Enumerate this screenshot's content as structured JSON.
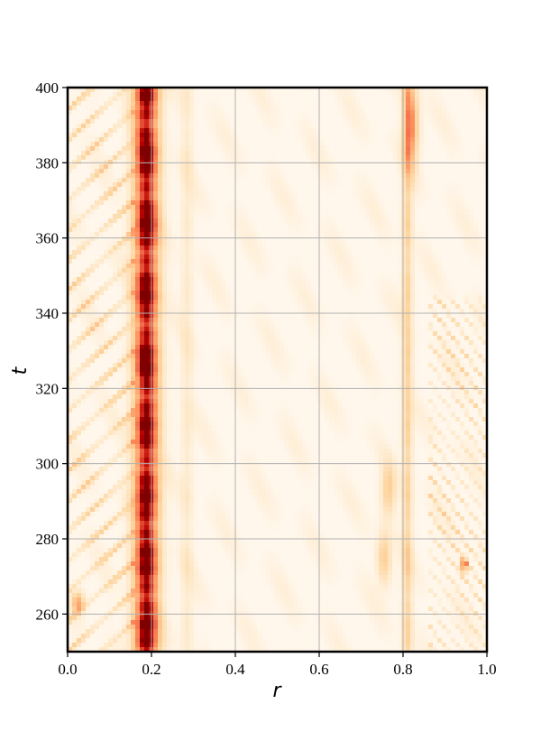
{
  "chart_data": {
    "type": "heatmap",
    "title": "",
    "xlabel": "r",
    "ylabel": "t",
    "xlim": [
      0.0,
      1.0
    ],
    "ylim": [
      250,
      400
    ],
    "x_ticks": [
      "0.0",
      "0.2",
      "0.4",
      "0.6",
      "0.8",
      "1.0"
    ],
    "y_ticks": [
      "260",
      "280",
      "300",
      "320",
      "340",
      "360",
      "380",
      "400"
    ],
    "grid": true,
    "colormap": "OrRd",
    "colors": {
      "low": "#fff7ec",
      "mid": "#fdbb84",
      "high": "#7f0000",
      "grid": "#b0b0b0",
      "frame": "#000000"
    },
    "features": [
      {
        "kind": "band",
        "r_center": 0.188,
        "r_halfwidth": 0.022,
        "t_range": [
          250,
          400
        ],
        "intensity": 1.0
      },
      {
        "kind": "band",
        "r_center": 0.81,
        "r_halfwidth": 0.012,
        "t_range": [
          250,
          400
        ],
        "intensity": 0.3
      },
      {
        "kind": "band",
        "r_center": 0.285,
        "r_halfwidth": 0.015,
        "t_range": [
          250,
          400
        ],
        "intensity": 0.12
      },
      {
        "kind": "blob",
        "r": 0.82,
        "t": 390,
        "sr": 0.012,
        "st": 8,
        "intensity": 0.55
      },
      {
        "kind": "blob",
        "r": 0.765,
        "t": 293,
        "sr": 0.012,
        "st": 5,
        "intensity": 0.35
      },
      {
        "kind": "blob",
        "r": 0.755,
        "t": 275,
        "sr": 0.012,
        "st": 5,
        "intensity": 0.35
      },
      {
        "kind": "blob",
        "r": 0.945,
        "t": 273,
        "sr": 0.006,
        "st": 1.5,
        "intensity": 0.7
      },
      {
        "kind": "blob",
        "r": 0.025,
        "t": 263,
        "sr": 0.01,
        "st": 2,
        "intensity": 0.55
      },
      {
        "kind": "stripes",
        "r_range": [
          0.0,
          0.16
        ],
        "t_range": [
          250,
          400
        ],
        "slope_t_per_r": 100,
        "period_t": 8,
        "intensity": 0.35
      },
      {
        "kind": "stripes",
        "r_range": [
          0.86,
          1.0
        ],
        "t_range": [
          250,
          345
        ],
        "slope_t_per_r": -150,
        "period_t": 5,
        "intensity": 0.3
      }
    ]
  }
}
